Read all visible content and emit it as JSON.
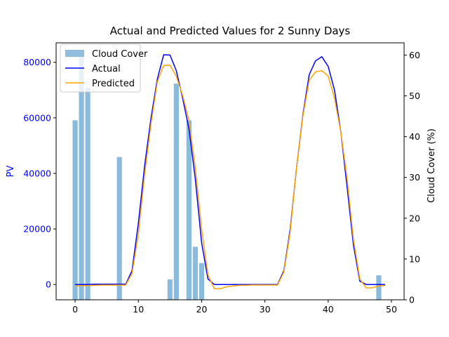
{
  "chart_data": {
    "type": "bar+line",
    "title": "Actual and Predicted Values for 2 Sunny Days",
    "xlabel": "",
    "ylabel_left": "PV",
    "ylabel_right": "Cloud Cover (%)",
    "xlim": [
      -3,
      52
    ],
    "ylim_left": [
      -5500,
      87000
    ],
    "ylim_right": [
      0,
      63
    ],
    "x_ticks": [
      0,
      10,
      20,
      30,
      40,
      50
    ],
    "y_ticks_left": [
      0,
      20000,
      40000,
      60000,
      80000
    ],
    "y_ticks_right": [
      0,
      10,
      20,
      30,
      40,
      50,
      60
    ],
    "grid": false,
    "legend_position": "top-left",
    "colors": {
      "cloud_cover": "#8bbbdc",
      "actual": "#0000ff",
      "predicted": "#ffa500",
      "left_axis_text": "#0000ff",
      "right_axis_text": "#000000"
    },
    "legend": [
      "Cloud Cover",
      "Actual",
      "Predicted"
    ],
    "cloud_cover": {
      "name": "Cloud Cover",
      "x": [
        0,
        1,
        2,
        7,
        15,
        16,
        18,
        19,
        20,
        48
      ],
      "values": [
        44,
        60,
        52,
        35,
        5,
        53,
        44,
        13,
        9,
        6
      ]
    },
    "series": [
      {
        "name": "Actual",
        "x": [
          0,
          1,
          2,
          3,
          4,
          5,
          6,
          7,
          8,
          9,
          10,
          11,
          12,
          13,
          14,
          15,
          16,
          17,
          18,
          19,
          20,
          21,
          22,
          23,
          24,
          25,
          26,
          27,
          28,
          29,
          30,
          31,
          32,
          33,
          34,
          35,
          36,
          37,
          38,
          39,
          40,
          41,
          42,
          43,
          44,
          45,
          46,
          47,
          48,
          49
        ],
        "values": [
          0,
          0,
          0,
          100,
          100,
          100,
          100,
          100,
          100,
          5000,
          22000,
          43000,
          60000,
          74000,
          82700,
          82600,
          77000,
          67000,
          56000,
          38000,
          15000,
          2000,
          0,
          0,
          0,
          0,
          0,
          0,
          0,
          0,
          0,
          0,
          0,
          5000,
          20000,
          42000,
          61000,
          75500,
          80500,
          82000,
          78500,
          70000,
          55000,
          35000,
          14000,
          1200,
          0,
          0,
          0,
          0
        ]
      },
      {
        "name": "Predicted",
        "x": [
          0,
          1,
          2,
          3,
          4,
          5,
          6,
          7,
          8,
          9,
          10,
          11,
          12,
          13,
          14,
          15,
          16,
          17,
          18,
          19,
          20,
          21,
          22,
          23,
          24,
          25,
          26,
          27,
          28,
          29,
          30,
          31,
          32,
          33,
          34,
          35,
          36,
          37,
          38,
          39,
          40,
          41,
          42,
          43,
          44,
          45,
          46,
          47,
          48,
          49
        ],
        "values": [
          -600,
          -400,
          -400,
          -300,
          -200,
          -200,
          -200,
          -200,
          -200,
          4000,
          18000,
          40000,
          58000,
          73000,
          78800,
          79000,
          75000,
          68000,
          59000,
          42000,
          20000,
          3500,
          -1500,
          -1500,
          -800,
          -500,
          -300,
          -300,
          -200,
          -200,
          -200,
          -200,
          -200,
          4500,
          19000,
          42000,
          60500,
          73500,
          76500,
          77000,
          75000,
          67000,
          55000,
          38000,
          16000,
          2000,
          -1200,
          -1200,
          -500,
          -400
        ]
      }
    ]
  }
}
